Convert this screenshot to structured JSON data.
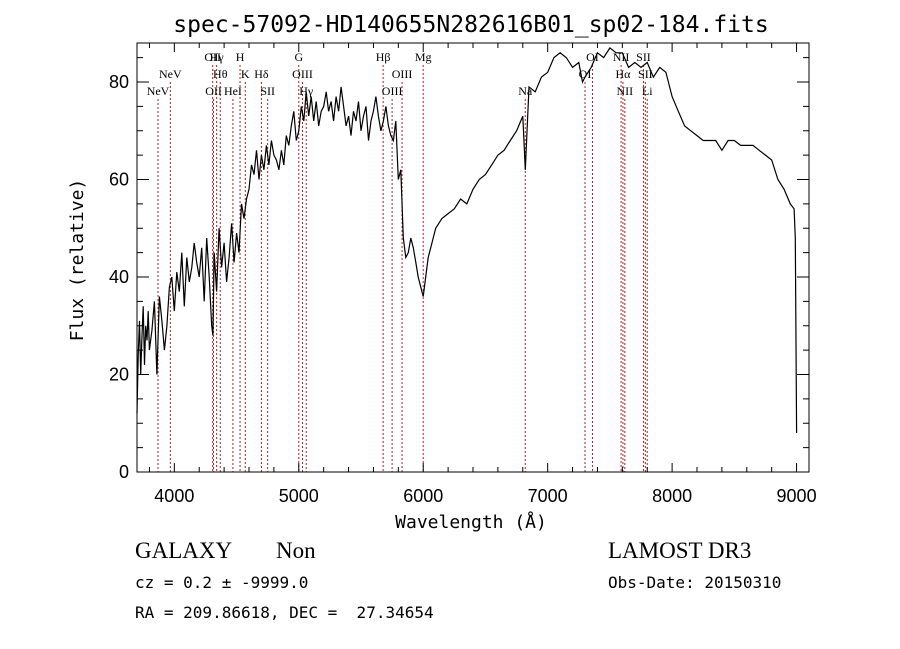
{
  "chart_data": {
    "type": "line",
    "title": "spec-57092-HD140655N282616B01_sp02-184.fits",
    "xlabel": "Wavelength (Å)",
    "ylabel": "Flux (relative)",
    "xlim": [
      3700,
      9100
    ],
    "ylim": [
      0,
      88
    ],
    "xticks": [
      4000,
      5000,
      6000,
      7000,
      8000,
      9000
    ],
    "yticks": [
      0,
      20,
      40,
      60,
      80
    ],
    "grid": false,
    "line_color": "#000000",
    "marker_color": "#b22222",
    "series": [
      {
        "x": [
          3700,
          3710,
          3720,
          3730,
          3740,
          3750,
          3760,
          3770,
          3780,
          3790,
          3800,
          3820,
          3840,
          3860,
          3880,
          3900,
          3920,
          3940,
          3960,
          3980,
          4000,
          4020,
          4040,
          4060,
          4080,
          4100,
          4120,
          4140,
          4160,
          4180,
          4200,
          4220,
          4240,
          4260,
          4280,
          4300,
          4310,
          4320,
          4340,
          4360,
          4380,
          4400,
          4420,
          4440,
          4460,
          4480,
          4500,
          4520,
          4540,
          4560,
          4580,
          4600,
          4620,
          4640,
          4660,
          4680,
          4700,
          4720,
          4740,
          4760,
          4780,
          4800,
          4820,
          4840,
          4860,
          4880,
          4900,
          4920,
          4940,
          4960,
          4980,
          5000,
          5020,
          5040,
          5060,
          5080,
          5100,
          5120,
          5140,
          5160,
          5180,
          5200,
          5220,
          5240,
          5260,
          5280,
          5300,
          5320,
          5340,
          5360,
          5380,
          5400,
          5420,
          5440,
          5460,
          5480,
          5500,
          5520,
          5540,
          5560,
          5580,
          5600,
          5620,
          5640,
          5660,
          5680,
          5700,
          5720,
          5740,
          5760,
          5780,
          5800,
          5820,
          5840,
          5860,
          5880,
          5900,
          5920,
          5940,
          5960,
          5980,
          6000,
          6020,
          6040,
          6060,
          6080,
          6100,
          6150,
          6200,
          6250,
          6300,
          6350,
          6400,
          6450,
          6500,
          6550,
          6600,
          6650,
          6700,
          6750,
          6800,
          6820,
          6850,
          6900,
          6950,
          7000,
          7050,
          7100,
          7150,
          7200,
          7250,
          7280,
          7300,
          7350,
          7400,
          7450,
          7500,
          7550,
          7600,
          7650,
          7700,
          7750,
          7800,
          7850,
          7900,
          7950,
          8000,
          8050,
          8100,
          8150,
          8200,
          8250,
          8300,
          8350,
          8400,
          8450,
          8500,
          8550,
          8600,
          8650,
          8700,
          8750,
          8800,
          8850,
          8900,
          8950,
          8980,
          8990,
          9000
        ],
        "values": [
          12,
          24,
          31,
          20,
          28,
          34,
          22,
          30,
          27,
          33,
          25,
          29,
          35,
          20,
          36,
          31,
          25,
          30,
          38,
          40,
          33,
          41,
          37,
          45,
          34,
          44,
          39,
          42,
          47,
          43,
          40,
          46,
          35,
          48,
          40,
          30,
          28,
          45,
          37,
          50,
          42,
          47,
          39,
          44,
          51,
          43,
          49,
          45,
          55,
          52,
          56,
          58,
          63,
          61,
          66,
          60,
          65,
          62,
          67,
          63,
          68,
          65,
          64,
          62,
          66,
          63,
          69,
          67,
          71,
          74,
          68,
          70,
          75,
          72,
          78,
          73,
          77,
          72,
          76,
          71,
          74,
          75,
          78,
          74,
          76,
          72,
          77,
          74,
          79,
          75,
          71,
          73,
          69,
          74,
          72,
          76,
          70,
          73,
          75,
          68,
          72,
          74,
          77,
          73,
          70,
          72,
          75,
          71,
          69,
          68,
          72,
          60,
          62,
          48,
          44,
          45,
          48,
          46,
          43,
          40,
          38,
          36,
          40,
          44,
          46,
          48,
          50,
          52,
          53,
          54,
          56,
          55,
          58,
          60,
          61,
          63,
          65,
          66,
          68,
          70,
          73,
          62,
          79,
          78,
          81,
          82,
          85,
          86,
          85,
          83,
          84,
          80,
          81,
          83,
          86,
          85,
          87,
          86,
          86,
          83,
          84,
          83,
          84,
          81,
          83,
          82,
          77,
          74,
          71,
          70,
          69,
          68,
          68,
          68,
          66,
          68,
          68,
          67,
          67,
          67,
          66,
          65,
          64,
          60,
          58,
          55,
          54,
          48,
          8
        ]
      }
    ],
    "lines": [
      {
        "x": 3869,
        "label": "NeV",
        "row": 2
      },
      {
        "x": 3968,
        "label": "NeV",
        "row": 1
      },
      {
        "x": 4308,
        "label": "OII",
        "row": 0
      },
      {
        "x": 4315,
        "label": "OII",
        "row": 2
      },
      {
        "x": 4340,
        "label": "Hγ",
        "row": 0
      },
      {
        "x": 4369,
        "label": "Hθ",
        "row": 1
      },
      {
        "x": 4471,
        "label": "HeI",
        "row": 2
      },
      {
        "x": 4528,
        "label": "H",
        "row": 0
      },
      {
        "x": 4570,
        "label": "K",
        "row": 1
      },
      {
        "x": 4700,
        "label": "Hδ",
        "row": 1
      },
      {
        "x": 4750,
        "label": "SII",
        "row": 2
      },
      {
        "x": 5000,
        "label": "G",
        "row": 0
      },
      {
        "x": 5030,
        "label": "OIII",
        "row": 1
      },
      {
        "x": 5060,
        "label": "Hγ",
        "row": 2
      },
      {
        "x": 5678,
        "label": "Hβ",
        "row": 0
      },
      {
        "x": 5750,
        "label": "OIII",
        "row": 2
      },
      {
        "x": 5830,
        "label": "OIII",
        "row": 1
      },
      {
        "x": 6000,
        "label": "Mg",
        "row": 0
      },
      {
        "x": 6820,
        "label": "Na",
        "row": 2
      },
      {
        "x": 7300,
        "label": "OI",
        "row": 1
      },
      {
        "x": 7360,
        "label": "OI",
        "row": 0
      },
      {
        "x": 7590,
        "label": "NII",
        "row": 0
      },
      {
        "x": 7605,
        "label": "Hα",
        "row": 1
      },
      {
        "x": 7620,
        "label": "NII",
        "row": 2
      },
      {
        "x": 7770,
        "label": "SII",
        "row": 0
      },
      {
        "x": 7785,
        "label": "SII",
        "row": 1
      },
      {
        "x": 7800,
        "label": "Li",
        "row": 2
      }
    ]
  },
  "info": {
    "object_type": "GALAXY",
    "subclass": "Non",
    "survey": "LAMOST DR3",
    "cz_line": "cz = 0.2 ± -9999.0",
    "obs_date": "Obs-Date: 20150310",
    "coords": "RA = 209.86618, DEC =  27.34654"
  }
}
